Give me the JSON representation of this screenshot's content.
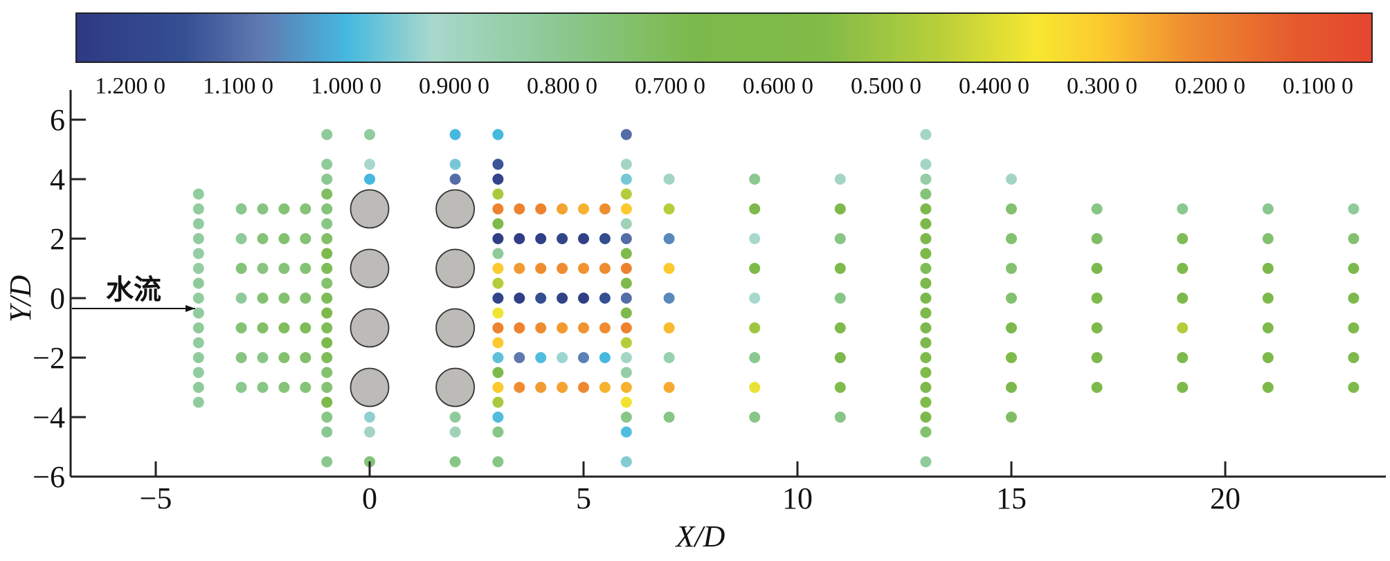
{
  "chart_data": {
    "type": "scatter",
    "title": "",
    "xlabel": "X/D",
    "ylabel": "Y/D",
    "xlim": [
      -7,
      23.7
    ],
    "ylim": [
      -6,
      7
    ],
    "xticks": [
      -5,
      0,
      5,
      10,
      15,
      20
    ],
    "yticks": [
      -6,
      -4,
      -2,
      0,
      2,
      4,
      6
    ],
    "xtick_labels": [
      "−5",
      "0",
      "5",
      "10",
      "15",
      "20"
    ],
    "ytick_labels": [
      "−6",
      "−4",
      "−2",
      "0",
      "2",
      "4",
      "6"
    ],
    "grid": false,
    "annotation": {
      "text": "水流",
      "arrow_from": [
        -7,
        -0.4
      ],
      "arrow_to": [
        -4,
        -0.4
      ]
    },
    "colorbar": {
      "placement": "top",
      "range": [
        1.25,
        0.05
      ],
      "tick_values": [
        1.2,
        1.1,
        1.0,
        0.9,
        0.8,
        0.7,
        0.6,
        0.5,
        0.4,
        0.3,
        0.2,
        0.1
      ],
      "tick_labels": [
        "1.200 0",
        "1.100 0",
        "1.000 0",
        "0.900 0",
        "0.800 0",
        "0.700 0",
        "0.600 0",
        "0.500 0",
        "0.400 0",
        "0.300 0",
        "0.200 0",
        "0.100 0"
      ],
      "stops": [
        {
          "v": 1.25,
          "c": "#2e3a83"
        },
        {
          "v": 1.15,
          "c": "#354f93"
        },
        {
          "v": 1.08,
          "c": "#5f79b0"
        },
        {
          "v": 1.0,
          "c": "#45b8e0"
        },
        {
          "v": 0.92,
          "c": "#a8d8cc"
        },
        {
          "v": 0.8,
          "c": "#8ac890"
        },
        {
          "v": 0.68,
          "c": "#7cb94c"
        },
        {
          "v": 0.56,
          "c": "#80bb48"
        },
        {
          "v": 0.45,
          "c": "#b9cf3a"
        },
        {
          "v": 0.36,
          "c": "#f7e731"
        },
        {
          "v": 0.3,
          "c": "#fcc92f"
        },
        {
          "v": 0.22,
          "c": "#ef8c30"
        },
        {
          "v": 0.12,
          "c": "#e55a2d"
        },
        {
          "v": 0.05,
          "c": "#e5462f"
        }
      ]
    },
    "cylinders": {
      "diameter": 1,
      "centers": [
        [
          0,
          3
        ],
        [
          0,
          1
        ],
        [
          0,
          -1
        ],
        [
          0,
          -3
        ],
        [
          2,
          3
        ],
        [
          2,
          1
        ],
        [
          2,
          -1
        ],
        [
          2,
          -3
        ]
      ],
      "color": "#bdbbb7"
    },
    "series": [
      {
        "name": "x=-4",
        "x": -4,
        "y": [
          3.5,
          3,
          2.5,
          2,
          1.5,
          1,
          0.5,
          0,
          -0.5,
          -1,
          -1.5,
          -2,
          -2.5,
          -3,
          -3.5
        ],
        "values": [
          0.83,
          0.83,
          0.83,
          0.83,
          0.84,
          0.84,
          0.82,
          0.83,
          0.83,
          0.82,
          0.83,
          0.82,
          0.83,
          0.82,
          0.83
        ]
      },
      {
        "name": "x=-3",
        "x": -3,
        "y": [
          3,
          2,
          1,
          0,
          -1,
          -2,
          -3
        ],
        "values": [
          0.8,
          0.82,
          0.76,
          0.82,
          0.75,
          0.77,
          0.8
        ]
      },
      {
        "name": "x=-2.5",
        "x": -2.5,
        "y": [
          3,
          2,
          1,
          0,
          -1,
          -2,
          -3
        ],
        "values": [
          0.77,
          0.76,
          0.77,
          0.74,
          0.73,
          0.78,
          0.78
        ]
      },
      {
        "name": "x=-2",
        "x": -2,
        "y": [
          3,
          2,
          1,
          0,
          -1,
          -2,
          -3
        ],
        "values": [
          0.75,
          0.74,
          0.76,
          0.74,
          0.71,
          0.74,
          0.76
        ]
      },
      {
        "name": "x=-1.5",
        "x": -1.5,
        "y": [
          3,
          2,
          1,
          0,
          -1,
          -2,
          -3
        ],
        "values": [
          0.76,
          0.75,
          0.75,
          0.74,
          0.7,
          0.73,
          0.76
        ]
      },
      {
        "name": "x=-1",
        "x": -1,
        "y": [
          5.5,
          4.5,
          4,
          3.5,
          3,
          2.5,
          2,
          1.5,
          1,
          0.5,
          0,
          -0.5,
          -1,
          -1.5,
          -2,
          -2.5,
          -3,
          -3.5,
          -4,
          -4.5,
          -5.5
        ],
        "values": [
          0.82,
          0.82,
          0.8,
          0.72,
          0.76,
          0.78,
          0.73,
          0.66,
          0.7,
          0.74,
          0.7,
          0.66,
          0.7,
          0.66,
          0.7,
          0.74,
          0.75,
          0.66,
          0.78,
          0.8,
          0.8
        ]
      },
      {
        "name": "x=0",
        "x": 0,
        "y": [
          5.5,
          4.5,
          4,
          -4,
          -4.5,
          -5.5
        ],
        "values": [
          0.83,
          0.92,
          1.0,
          0.94,
          0.9,
          0.76
        ]
      },
      {
        "name": "x=2",
        "x": 2,
        "y": [
          5.5,
          4.5,
          4,
          -4,
          -4.5,
          -5.5
        ],
        "values": [
          1.0,
          0.96,
          1.1,
          0.82,
          0.88,
          0.78
        ]
      },
      {
        "name": "x=3",
        "x": 3,
        "y": [
          5.5,
          4.5,
          4,
          3.5,
          3,
          2.5,
          2,
          1.5,
          1,
          0.5,
          0,
          -0.5,
          -1,
          -1.5,
          -2,
          -2.5,
          -3,
          -3.5,
          -4,
          -4.5,
          -5.5
        ],
        "values": [
          1.0,
          1.14,
          1.2,
          0.48,
          0.2,
          0.65,
          1.23,
          0.82,
          0.3,
          0.46,
          1.2,
          0.37,
          0.2,
          0.3,
          0.98,
          0.65,
          0.3,
          0.48,
          0.99,
          0.78,
          0.78
        ]
      },
      {
        "name": "x=3.5",
        "x": 3.5,
        "y": [
          3,
          2,
          1,
          0,
          -1,
          -2,
          -3
        ],
        "values": [
          0.2,
          1.23,
          0.24,
          1.22,
          0.2,
          1.08,
          0.22
        ]
      },
      {
        "name": "x=4",
        "x": 4,
        "y": [
          3,
          2,
          1,
          0,
          -1,
          -2,
          -3
        ],
        "values": [
          0.2,
          1.22,
          0.22,
          1.16,
          0.22,
          0.99,
          0.24
        ]
      },
      {
        "name": "x=4.5",
        "x": 4.5,
        "y": [
          3,
          2,
          1,
          0,
          -1,
          -2,
          -3
        ],
        "values": [
          0.25,
          1.2,
          0.22,
          1.21,
          0.24,
          0.93,
          0.25
        ]
      },
      {
        "name": "x=5",
        "x": 5,
        "y": [
          3,
          2,
          1,
          0,
          -1,
          -2,
          -3
        ],
        "values": [
          0.27,
          1.22,
          0.23,
          1.23,
          0.23,
          1.07,
          0.21
        ]
      },
      {
        "name": "x=5.5",
        "x": 5.5,
        "y": [
          3,
          2,
          1,
          0,
          -1,
          -2,
          -3
        ],
        "values": [
          0.22,
          1.16,
          0.22,
          1.15,
          0.22,
          1.0,
          0.27
        ]
      },
      {
        "name": "x=6",
        "x": 6,
        "y": [
          5.5,
          4.5,
          4,
          3.5,
          3,
          2.5,
          2,
          1.5,
          1,
          0.5,
          0,
          -0.5,
          -1,
          -1.5,
          -2,
          -2.5,
          -3,
          -3.5,
          -4,
          -4.5,
          -5.5
        ],
        "values": [
          1.1,
          0.9,
          0.96,
          0.46,
          0.3,
          0.88,
          1.1,
          0.65,
          0.2,
          0.66,
          1.1,
          0.65,
          0.2,
          0.46,
          0.9,
          0.84,
          0.27,
          0.37,
          0.78,
          0.99,
          0.95
        ]
      },
      {
        "name": "x=7",
        "x": 7,
        "y": [
          4,
          3,
          2,
          1,
          0,
          -1,
          -2,
          -3,
          -4
        ],
        "values": [
          0.9,
          0.46,
          1.06,
          0.3,
          1.06,
          0.28,
          0.86,
          0.26,
          0.78
        ]
      },
      {
        "name": "x=9",
        "x": 9,
        "y": [
          4,
          3,
          2,
          1,
          0,
          -1,
          -2,
          -3,
          -4
        ],
        "values": [
          0.8,
          0.66,
          0.92,
          0.62,
          0.92,
          0.5,
          0.8,
          0.38,
          0.78
        ]
      },
      {
        "name": "x=11",
        "x": 11,
        "y": [
          4,
          3,
          2,
          1,
          0,
          -1,
          -2,
          -3,
          -4
        ],
        "values": [
          0.9,
          0.66,
          0.78,
          0.66,
          0.78,
          0.62,
          0.66,
          0.58,
          0.78
        ]
      },
      {
        "name": "x=13",
        "x": 13,
        "y": [
          5.5,
          4.5,
          4,
          3.5,
          3,
          2.5,
          2,
          1.5,
          1,
          0.5,
          0,
          -0.5,
          -1,
          -1.5,
          -2,
          -2.5,
          -3,
          -3.5,
          -4,
          -4.5,
          -5.5
        ],
        "values": [
          0.9,
          0.9,
          0.84,
          0.76,
          0.68,
          0.68,
          0.68,
          0.66,
          0.7,
          0.68,
          0.68,
          0.66,
          0.68,
          0.68,
          0.66,
          0.56,
          0.66,
          0.56,
          0.68,
          0.74,
          0.82
        ]
      },
      {
        "name": "x=15",
        "x": 15,
        "y": [
          4,
          3,
          2,
          1,
          0,
          -1,
          -2,
          -3,
          -4
        ],
        "values": [
          0.9,
          0.74,
          0.74,
          0.74,
          0.74,
          0.68,
          0.66,
          0.68,
          0.72
        ]
      },
      {
        "name": "x=17",
        "x": 17,
        "y": [
          3,
          2,
          1,
          0,
          -1,
          -2,
          -3
        ],
        "values": [
          0.78,
          0.72,
          0.68,
          0.66,
          0.66,
          0.66,
          0.64
        ]
      },
      {
        "name": "x=19",
        "x": 19,
        "y": [
          3,
          2,
          1,
          0,
          -1,
          -2,
          -3
        ],
        "values": [
          0.8,
          0.7,
          0.64,
          0.68,
          0.46,
          0.66,
          0.66
        ]
      },
      {
        "name": "x=21",
        "x": 21,
        "y": [
          3,
          2,
          1,
          0,
          -1,
          -2,
          -3
        ],
        "values": [
          0.8,
          0.74,
          0.68,
          0.68,
          0.66,
          0.66,
          0.66
        ]
      },
      {
        "name": "x=23",
        "x": 23,
        "y": [
          3,
          2,
          1,
          0,
          -1,
          -2,
          -3
        ],
        "values": [
          0.82,
          0.74,
          0.68,
          0.68,
          0.66,
          0.66,
          0.66
        ]
      }
    ]
  }
}
